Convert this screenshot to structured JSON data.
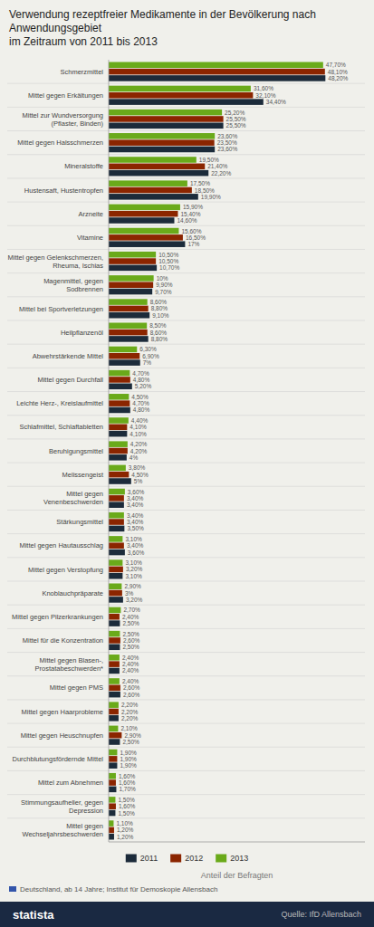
{
  "chart_data": {
    "type": "bar",
    "orientation": "horizontal",
    "title": "Verwendung rezeptfreier Medikamente in der Bevölkerung nach Anwendungsgebiet\nim Zeitraum von 2011 bis 2013",
    "xlabel": "Anteil der Befragten",
    "annotations": [
      "Deutschland, ab 14 Jahre; Institut für Demoskopie Allensbach",
      "statista",
      "Quelle: IfD Allensbach"
    ],
    "categories": [
      "Schmerzmittel",
      "Mittel gegen Erkältungen",
      "Mittel zur Wundversorgung\n(Pflaster, Binden)",
      "Mittel gegen Halsschmerzen",
      "Mineralstoffe",
      "Hustensaft, Hustentropfen",
      "Arzneite",
      "Vitamine",
      "Mittel gegen Gelenkschmerzen,\nRheuma, Ischias",
      "Magenmittel, gegen\nSodbrennen",
      "Mittel bei Sportverletzungen",
      "Heilpflanzenöl",
      "Abwehrstärkende Mittel",
      "Mittel gegen Durchfall",
      "Leichte Herz-, Kreislaufmittel",
      "Schlafmittel, Schlaftabletten",
      "Beruhigungsmittel",
      "Melissengeist",
      "Mittel gegen\nVenenbeschwerden",
      "Stärkungsmittel",
      "Mittel gegen Hautausschlag",
      "Mittel gegen Verstopfung",
      "Knoblauchpräparate",
      "Mittel gegen Pilzerkrankungen",
      "Mittel für die Konzentration",
      "Mittel gegen Blasen-,\nProstatabeschwerden*",
      "Mittel gegen PMS",
      "Mittel gegen Haarprobleme",
      "Mittel gegen Heuschnupfen",
      "Durchblutungsfördernde Mittel",
      "Mittel zum Abnehmen",
      "Stimmungsaufheller, gegen\nDepression",
      "Mittel gegen\nWechseljahrsbeschwerden"
    ],
    "series": [
      {
        "name": "2011",
        "color": "#1c2b3a",
        "values": [
          48.2,
          34.4,
          25.5,
          23.6,
          22.2,
          19.9,
          14.6,
          17.0,
          10.7,
          9.7,
          9.1,
          8.8,
          7.0,
          5.2,
          4.8,
          4.1,
          4.0,
          5.0,
          3.4,
          3.5,
          3.6,
          3.1,
          3.2,
          2.5,
          2.5,
          2.4,
          2.6,
          2.2,
          2.5,
          1.9,
          1.7,
          1.5,
          1.2
        ],
        "value_labels": [
          "48,20%",
          "34,40%",
          "25,50%",
          "23,60%",
          "22,20%",
          "19,90%",
          "14,60%",
          "17%",
          "10,70%",
          "9,70%",
          "9,10%",
          "8,80%",
          "7%",
          "5,20%",
          "4,80%",
          "4,10%",
          "4%",
          "5%",
          "3,40%",
          "3,50%",
          "3,60%",
          "3,10%",
          "3,20%",
          "2,50%",
          "2,50%",
          "2,40%",
          "2,60%",
          "2,20%",
          "2,50%",
          "1,90%",
          "1,70%",
          "1,50%",
          "1,20%"
        ]
      },
      {
        "name": "2012",
        "color": "#8b2500",
        "values": [
          48.1,
          32.1,
          25.5,
          23.5,
          21.4,
          18.5,
          15.4,
          16.5,
          10.5,
          9.9,
          8.8,
          8.6,
          6.9,
          4.8,
          4.7,
          4.1,
          4.2,
          4.5,
          3.4,
          3.4,
          3.4,
          3.2,
          3.0,
          2.4,
          2.6,
          2.4,
          2.6,
          2.2,
          2.9,
          1.9,
          1.6,
          1.6,
          1.2
        ],
        "value_labels": [
          "48,10%",
          "32,10%",
          "25,50%",
          "23,50%",
          "21,40%",
          "18,50%",
          "15,40%",
          "16,50%",
          "10,50%",
          "9,90%",
          "8,80%",
          "8,60%",
          "6,90%",
          "4,80%",
          "4,70%",
          "4,10%",
          "4,20%",
          "4,50%",
          "3,40%",
          "3,40%",
          "3,40%",
          "3,20%",
          "3%",
          "2,40%",
          "2,60%",
          "2,40%",
          "2,60%",
          "2,20%",
          "2,90%",
          "1,90%",
          "1,60%",
          "1,60%",
          "1,20%"
        ]
      },
      {
        "name": "2013",
        "color": "#6aaa1a",
        "values": [
          47.7,
          31.6,
          25.2,
          23.6,
          19.5,
          17.5,
          15.9,
          15.6,
          10.5,
          10.0,
          8.6,
          8.5,
          6.3,
          4.7,
          4.5,
          4.4,
          4.2,
          3.8,
          3.6,
          3.4,
          3.1,
          3.1,
          2.9,
          2.7,
          2.5,
          2.4,
          2.4,
          2.2,
          2.1,
          1.9,
          1.6,
          1.5,
          1.1
        ],
        "value_labels": [
          "47,70%",
          "31,60%",
          "25,20%",
          "23,60%",
          "19,50%",
          "17,50%",
          "15,90%",
          "15,60%",
          "10,50%",
          "10%",
          "8,60%",
          "8,50%",
          "6,30%",
          "4,70%",
          "4,50%",
          "4,40%",
          "4,20%",
          "3,80%",
          "3,60%",
          "3,40%",
          "3,10%",
          "3,10%",
          "2,90%",
          "2,70%",
          "2,50%",
          "2,40%",
          "2,40%",
          "2,20%",
          "2,10%",
          "1,90%",
          "1,60%",
          "1,50%",
          "1,10%"
        ]
      }
    ],
    "xlim": [
      0,
      57
    ],
    "data_labels": true,
    "tick_labels": "y",
    "grid": false,
    "legend": "bottom"
  }
}
